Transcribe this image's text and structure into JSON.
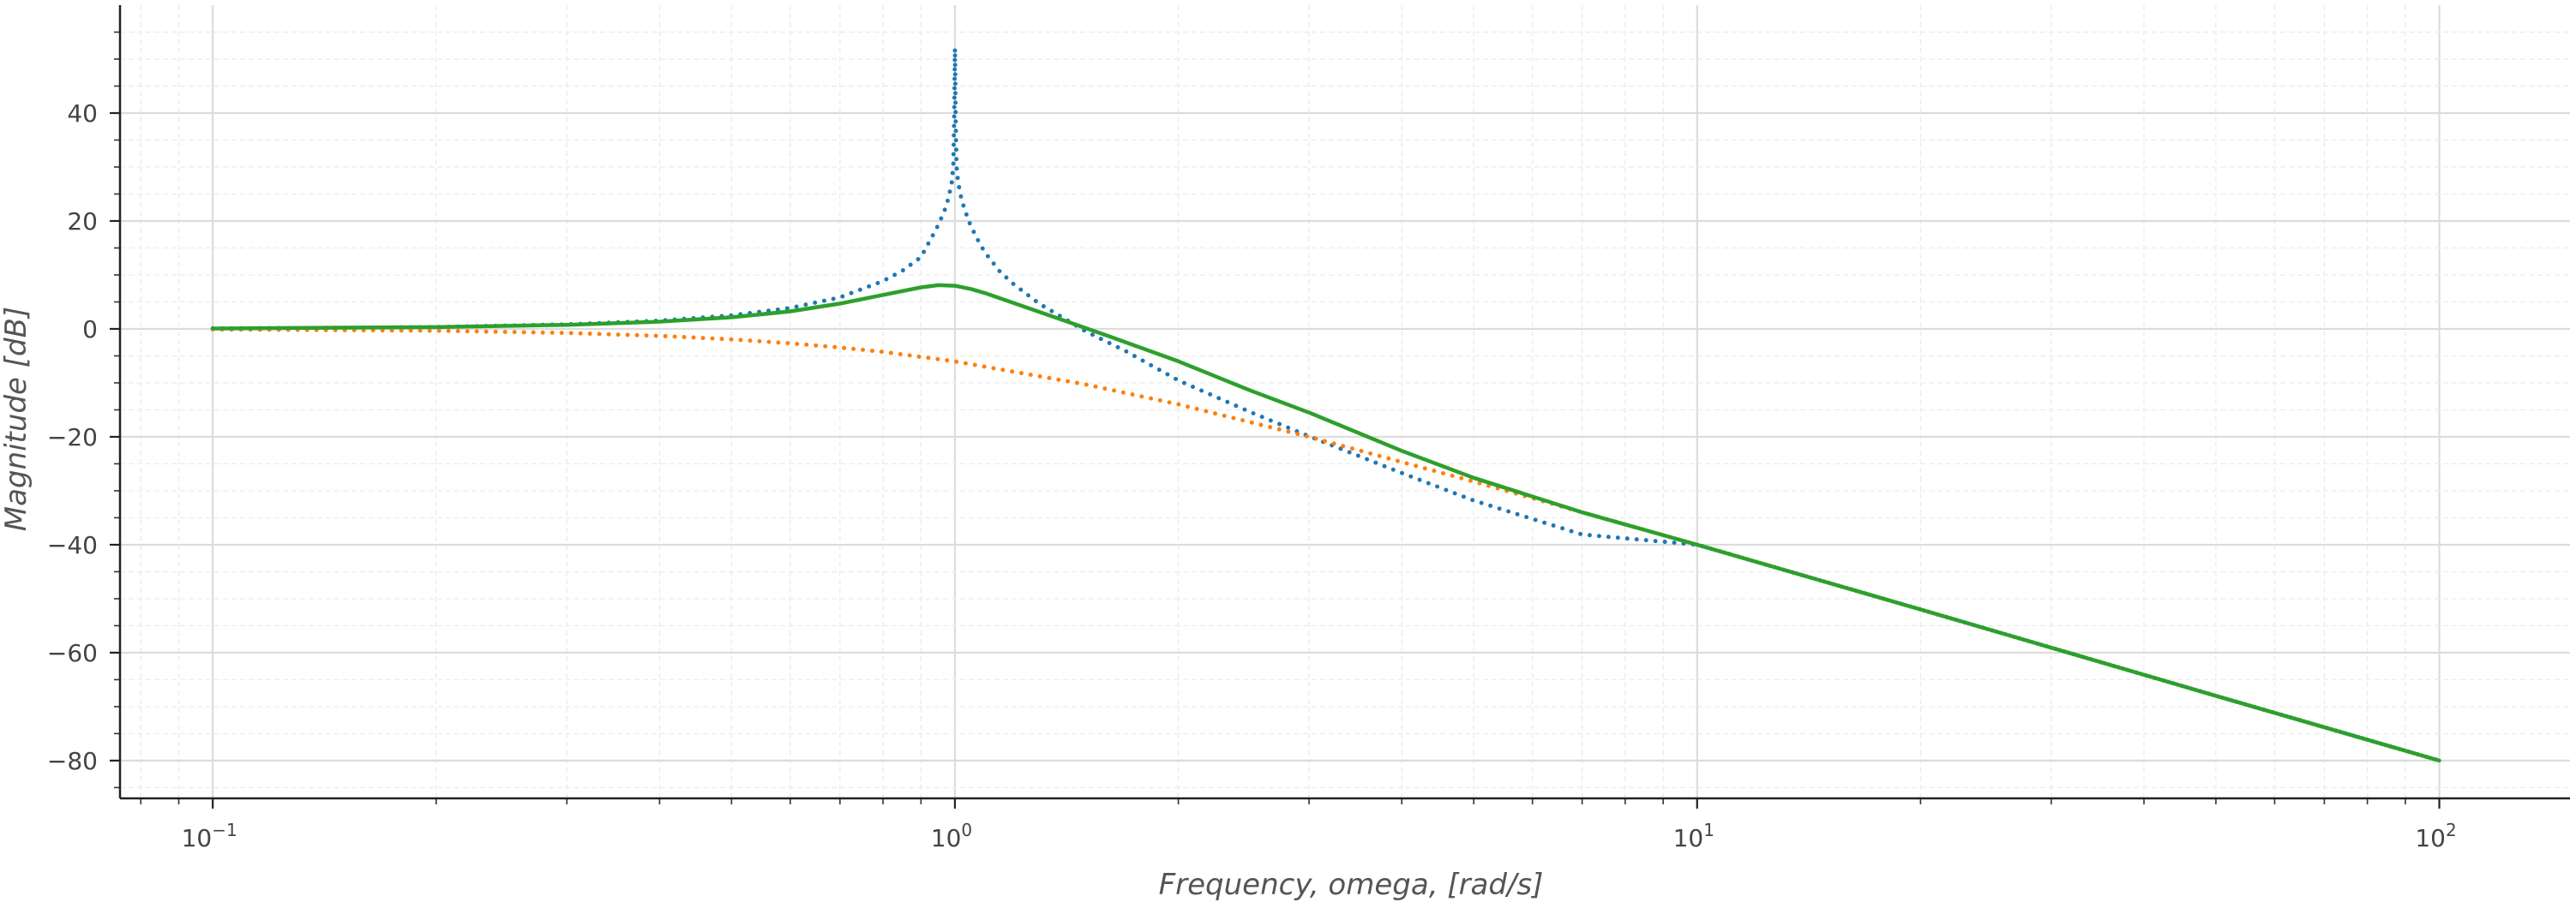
{
  "chart_data": {
    "type": "line",
    "title": "",
    "xlabel": "Frequency, omega, [rad/s]",
    "ylabel": "Magnitude [dB]",
    "x_scale": "log",
    "xlim": [
      0.075,
      150
    ],
    "ylim": [
      -87,
      60
    ],
    "x_ticks": [
      {
        "value": 0.1,
        "base": "10",
        "exp": "−1"
      },
      {
        "value": 1,
        "base": "10",
        "exp": "0"
      },
      {
        "value": 10,
        "base": "10",
        "exp": "1"
      },
      {
        "value": 100,
        "base": "10",
        "exp": "2"
      }
    ],
    "y_ticks": [
      40,
      20,
      0,
      -20,
      -40,
      -60,
      -80
    ],
    "grid": true,
    "series": [
      {
        "style": "dotted",
        "color": "#1f77b4",
        "x": [
          0.1,
          0.15,
          0.2,
          0.3,
          0.4,
          0.5,
          0.6,
          0.7,
          0.8,
          0.85,
          0.9,
          0.93,
          0.95,
          0.97,
          0.98,
          0.99,
          0.995,
          0.998,
          1.0,
          1.002,
          1.005,
          1.01,
          1.02,
          1.03,
          1.05,
          1.08,
          1.1,
          1.15,
          1.2,
          1.3,
          1.5,
          1.7,
          2.0,
          2.5,
          3.0,
          4.0,
          5.0,
          7.0,
          10,
          20,
          50,
          100
        ],
        "y": [
          0.09,
          0.2,
          0.35,
          0.83,
          1.52,
          2.5,
          3.88,
          5.84,
          8.87,
          10.8,
          13.3,
          16.9,
          19.3,
          22.2,
          24.2,
          27.1,
          30.3,
          40,
          52,
          40,
          30.3,
          27.1,
          24.2,
          22.2,
          19.1,
          15.8,
          14.0,
          10.6,
          8.28,
          4.65,
          -0.43,
          -4.15,
          -9.54,
          -15.4,
          -19.9,
          -26.7,
          -31.8,
          -38.1,
          -40.0,
          -52.0,
          -68.0,
          -80.0
        ]
      },
      {
        "style": "dotted",
        "color": "#ff7f0e",
        "x": [
          0.1,
          0.2,
          0.3,
          0.4,
          0.5,
          0.6,
          0.7,
          0.8,
          1.0,
          1.5,
          2.0,
          3.0,
          5.0,
          7.0,
          10,
          20,
          50,
          100
        ],
        "y": [
          -0.09,
          -0.34,
          -0.75,
          -1.29,
          -1.94,
          -2.67,
          -3.45,
          -4.26,
          -6.02,
          -10.3,
          -13.98,
          -20.0,
          -28.3,
          -34.0,
          -40.0,
          -52.0,
          -68.0,
          -80.0
        ]
      },
      {
        "style": "solid",
        "color": "#2ca02c",
        "x": [
          0.1,
          0.2,
          0.3,
          0.4,
          0.5,
          0.6,
          0.7,
          0.8,
          0.9,
          0.95,
          1.0,
          1.05,
          1.1,
          1.2,
          1.4,
          1.6,
          2.0,
          2.5,
          3.0,
          4.0,
          5.0,
          7.0,
          10,
          20,
          50,
          100
        ],
        "y": [
          0.08,
          0.33,
          0.75,
          1.34,
          2.15,
          3.25,
          4.7,
          6.3,
          7.7,
          8.1,
          8.0,
          7.4,
          6.6,
          4.8,
          1.6,
          -1.2,
          -6.0,
          -11.4,
          -15.5,
          -22.6,
          -27.6,
          -34.0,
          -40.0,
          -52.0,
          -68.0,
          -80.0
        ]
      }
    ]
  }
}
